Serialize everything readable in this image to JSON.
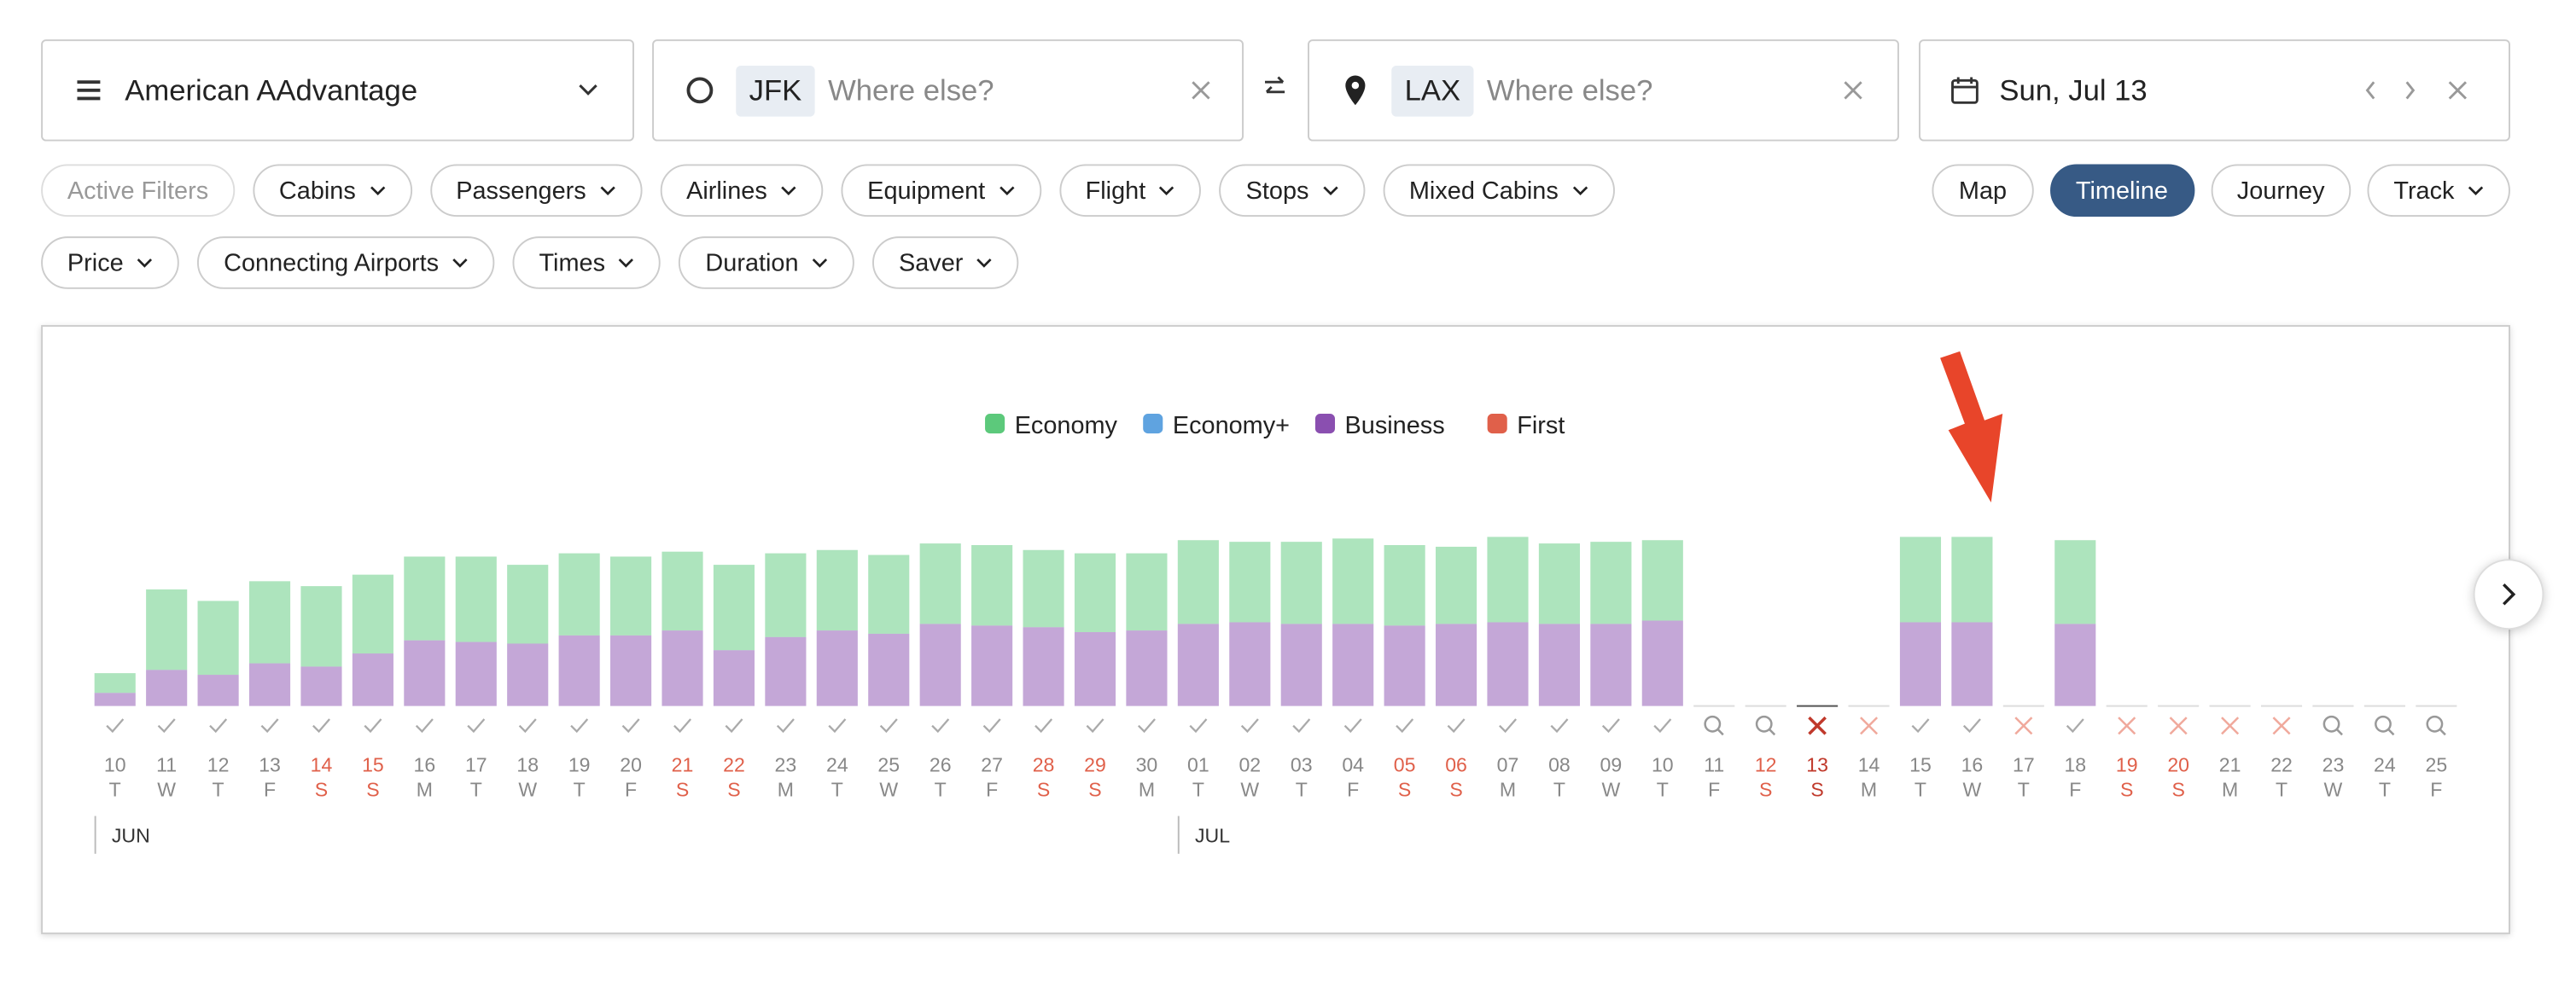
{
  "search": {
    "program": "American AAdvantage",
    "origin": "JFK",
    "origin_placeholder": "Where else?",
    "destination": "LAX",
    "destination_placeholder": "Where else?",
    "date": "Sun, Jul 13"
  },
  "filters": {
    "row1": [
      "Active Filters",
      "Cabins",
      "Passengers",
      "Airlines",
      "Equipment",
      "Flight",
      "Stops",
      "Mixed Cabins"
    ],
    "row2": [
      "Price",
      "Connecting Airports",
      "Times",
      "Duration",
      "Saver"
    ]
  },
  "views": {
    "items": [
      "Map",
      "Timeline",
      "Journey",
      "Track"
    ],
    "active": "Timeline"
  },
  "chart_data": {
    "type": "stacked-bar",
    "categories": [
      "10",
      "11",
      "12",
      "13",
      "14",
      "15",
      "16",
      "17",
      "18",
      "19",
      "20",
      "21",
      "22",
      "23",
      "24",
      "25",
      "26",
      "27",
      "28",
      "29",
      "30",
      "01",
      "02",
      "03",
      "04",
      "05",
      "06",
      "07",
      "08",
      "09",
      "10",
      "11",
      "12",
      "13",
      "14",
      "15",
      "16",
      "17",
      "18",
      "19",
      "20",
      "21",
      "22",
      "23",
      "24",
      "25"
    ],
    "weekdays": [
      "T",
      "W",
      "T",
      "F",
      "S",
      "S",
      "M",
      "T",
      "W",
      "T",
      "F",
      "S",
      "S",
      "M",
      "T",
      "W",
      "T",
      "F",
      "S",
      "S",
      "M",
      "T",
      "W",
      "T",
      "F",
      "S",
      "S",
      "M",
      "T",
      "W",
      "T",
      "F",
      "S",
      "S",
      "M",
      "T",
      "W",
      "T",
      "F",
      "S",
      "S",
      "M",
      "T",
      "W",
      "T",
      "F"
    ],
    "status": [
      "check",
      "check",
      "check",
      "check",
      "check",
      "check",
      "check",
      "check",
      "check",
      "check",
      "check",
      "check",
      "check",
      "check",
      "check",
      "check",
      "check",
      "check",
      "check",
      "check",
      "check",
      "check",
      "check",
      "check",
      "check",
      "check",
      "check",
      "check",
      "check",
      "check",
      "check",
      "search",
      "search",
      "selected-none",
      "none",
      "check",
      "check",
      "none",
      "check",
      "none",
      "none",
      "none",
      "none",
      "search",
      "search",
      "search"
    ],
    "months": [
      {
        "label": "JUN",
        "index": 0
      },
      {
        "label": "JUL",
        "index": 21
      }
    ],
    "series": [
      {
        "name": "Economy",
        "color": "#5cc97b",
        "values": [
          12,
          49,
          45,
          50,
          49,
          48,
          51,
          52,
          48,
          50,
          48,
          48,
          52,
          51,
          49,
          48,
          49,
          49,
          47,
          48,
          47,
          51,
          49,
          50,
          52,
          49,
          47,
          52,
          49,
          50,
          49,
          null,
          null,
          null,
          null,
          52,
          52,
          null,
          51,
          null,
          null,
          null,
          null,
          null,
          null,
          null
        ]
      },
      {
        "name": "Economy+",
        "color": "#5fa3e0",
        "values": [
          null,
          null,
          null,
          null,
          null,
          null,
          null,
          null,
          null,
          null,
          null,
          null,
          null,
          null,
          null,
          null,
          null,
          null,
          null,
          null,
          null,
          null,
          null,
          null,
          null,
          null,
          null,
          null,
          null,
          null,
          null,
          null,
          null,
          null,
          null,
          null,
          null,
          null,
          null,
          null,
          null,
          null,
          null,
          null,
          null,
          null
        ]
      },
      {
        "name": "Business",
        "color": "#8a4fb0",
        "values": [
          8,
          22,
          19,
          26,
          24,
          32,
          40,
          39,
          38,
          43,
          43,
          46,
          34,
          42,
          46,
          44,
          50,
          49,
          48,
          45,
          46,
          50,
          51,
          50,
          50,
          49,
          50,
          51,
          50,
          50,
          52,
          null,
          null,
          null,
          null,
          51,
          51,
          null,
          50,
          null,
          null,
          null,
          null,
          null,
          null,
          null
        ]
      },
      {
        "name": "First",
        "color": "#e0604a",
        "values": [
          null,
          null,
          null,
          null,
          null,
          null,
          null,
          null,
          null,
          null,
          null,
          null,
          null,
          null,
          null,
          null,
          null,
          null,
          null,
          null,
          null,
          null,
          null,
          null,
          null,
          null,
          null,
          null,
          null,
          null,
          null,
          null,
          null,
          null,
          null,
          null,
          null,
          null,
          null,
          null,
          null,
          null,
          null,
          null,
          null,
          null
        ]
      }
    ]
  }
}
